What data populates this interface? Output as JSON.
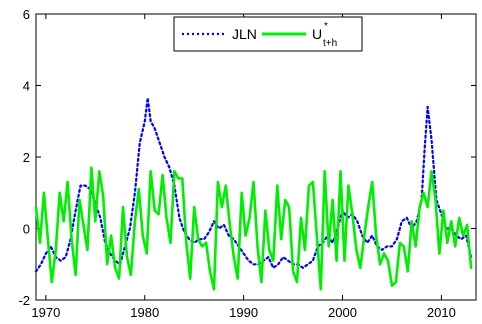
{
  "chart_data": {
    "type": "line",
    "title": "",
    "xlabel": "",
    "ylabel": "",
    "xlim": [
      1969,
      2013.5
    ],
    "ylim": [
      -2,
      6
    ],
    "x_ticks": [
      1970,
      1980,
      1990,
      2000,
      2010
    ],
    "y_ticks": [
      -2,
      0,
      2,
      4,
      6
    ],
    "grid": false,
    "legend": {
      "placement": "top-center",
      "entries": [
        {
          "label": "JLN",
          "series": 0
        },
        {
          "label_main": "U",
          "label_sup": "*",
          "label_sub": "t+h",
          "series": 1
        }
      ]
    },
    "series": [
      {
        "name": "JLN",
        "color": "#0000ff",
        "style": "dotted",
        "x": [
          1969.0,
          1969.5,
          1970.0,
          1970.5,
          1971.0,
          1971.5,
          1972.0,
          1972.5,
          1973.0,
          1973.5,
          1974.0,
          1974.5,
          1975.0,
          1975.5,
          1976.0,
          1976.5,
          1977.0,
          1977.5,
          1978.0,
          1978.5,
          1979.0,
          1979.5,
          1980.0,
          1980.3,
          1980.6,
          1981.0,
          1981.5,
          1982.0,
          1982.5,
          1983.0,
          1983.5,
          1984.0,
          1984.5,
          1985.0,
          1985.5,
          1986.0,
          1986.5,
          1987.0,
          1987.5,
          1988.0,
          1988.5,
          1989.0,
          1989.5,
          1990.0,
          1990.5,
          1991.0,
          1991.5,
          1992.0,
          1992.5,
          1993.0,
          1993.5,
          1994.0,
          1994.5,
          1995.0,
          1995.5,
          1996.0,
          1996.5,
          1997.0,
          1997.5,
          1998.0,
          1998.5,
          1999.0,
          1999.5,
          2000.0,
          2000.5,
          2001.0,
          2001.5,
          2002.0,
          2002.5,
          2003.0,
          2003.5,
          2004.0,
          2004.5,
          2005.0,
          2005.5,
          2006.0,
          2006.5,
          2007.0,
          2007.5,
          2008.0,
          2008.3,
          2008.6,
          2009.0,
          2009.5,
          2010.0,
          2010.5,
          2011.0,
          2011.5,
          2012.0,
          2012.5,
          2013.0
        ],
        "y": [
          -1.2,
          -1.0,
          -0.7,
          -0.5,
          -0.8,
          -0.9,
          -0.8,
          -0.3,
          0.5,
          1.2,
          1.2,
          1.1,
          0.7,
          0.3,
          -0.4,
          -0.7,
          -0.9,
          -1.0,
          -0.5,
          0.0,
          1.0,
          2.4,
          3.0,
          3.65,
          3.0,
          2.8,
          2.4,
          2.0,
          1.7,
          1.2,
          0.3,
          -0.1,
          -0.3,
          -0.4,
          -0.3,
          -0.3,
          -0.1,
          0.2,
          0.0,
          0.1,
          -0.2,
          -0.3,
          -0.5,
          -0.7,
          -0.9,
          -1.0,
          -1.0,
          -0.9,
          -0.8,
          -1.1,
          -1.0,
          -0.8,
          -0.9,
          -1.0,
          -1.0,
          -1.1,
          -1.0,
          -0.9,
          -0.5,
          -0.4,
          -0.2,
          -0.4,
          0.0,
          0.5,
          0.3,
          0.4,
          0.2,
          -0.2,
          -0.4,
          -0.2,
          -0.5,
          -0.6,
          -0.5,
          -0.5,
          -0.3,
          0.2,
          0.3,
          0.0,
          0.2,
          0.8,
          2.2,
          3.4,
          2.5,
          0.8,
          0.4,
          0.0,
          0.0,
          -0.2,
          -0.3,
          -0.2,
          -0.8
        ]
      },
      {
        "name": "U*t+h",
        "color": "#00ee00",
        "style": "solid",
        "x": [
          1969.0,
          1969.4,
          1969.8,
          1970.2,
          1970.6,
          1971.0,
          1971.4,
          1971.8,
          1972.2,
          1972.6,
          1973.0,
          1973.4,
          1973.8,
          1974.2,
          1974.6,
          1975.0,
          1975.4,
          1975.8,
          1976.2,
          1976.6,
          1977.0,
          1977.4,
          1977.8,
          1978.2,
          1978.6,
          1979.0,
          1979.4,
          1979.8,
          1980.2,
          1980.6,
          1981.0,
          1981.4,
          1981.8,
          1982.2,
          1982.6,
          1983.0,
          1983.4,
          1983.8,
          1984.2,
          1984.6,
          1985.0,
          1985.4,
          1985.8,
          1986.2,
          1986.6,
          1987.0,
          1987.4,
          1987.8,
          1988.2,
          1988.6,
          1989.0,
          1989.4,
          1989.8,
          1990.2,
          1990.6,
          1991.0,
          1991.4,
          1991.8,
          1992.2,
          1992.6,
          1993.0,
          1993.4,
          1993.8,
          1994.2,
          1994.6,
          1995.0,
          1995.4,
          1995.8,
          1996.2,
          1996.6,
          1997.0,
          1997.4,
          1997.8,
          1998.2,
          1998.6,
          1999.0,
          1999.4,
          1999.8,
          2000.2,
          2000.6,
          2001.0,
          2001.4,
          2001.8,
          2002.2,
          2002.6,
          2003.0,
          2003.4,
          2003.8,
          2004.2,
          2004.6,
          2005.0,
          2005.4,
          2005.8,
          2006.2,
          2006.6,
          2007.0,
          2007.4,
          2007.8,
          2008.2,
          2008.6,
          2009.0,
          2009.4,
          2009.8,
          2010.2,
          2010.6,
          2011.0,
          2011.4,
          2011.8,
          2012.2,
          2012.6,
          2013.0
        ],
        "y": [
          0.6,
          -0.4,
          1.0,
          -0.3,
          -1.5,
          -0.6,
          1.0,
          0.2,
          1.3,
          -0.3,
          -1.3,
          0.8,
          0.1,
          -0.6,
          1.7,
          0.2,
          1.6,
          0.9,
          -1.0,
          -0.2,
          -1.1,
          -1.4,
          0.6,
          -0.8,
          -1.3,
          0.2,
          1.1,
          -0.2,
          -0.7,
          1.6,
          0.5,
          0.4,
          1.5,
          0.3,
          -0.4,
          1.6,
          1.4,
          1.4,
          -0.4,
          -1.4,
          0.6,
          -0.3,
          -0.5,
          -0.4,
          -1.2,
          -1.7,
          1.3,
          0.6,
          1.2,
          0.1,
          -0.8,
          -1.4,
          1.0,
          -0.2,
          0.3,
          1.3,
          -0.5,
          -1.5,
          0.5,
          -0.6,
          -0.9,
          1.2,
          -0.3,
          0.8,
          0.6,
          -1.2,
          -1.5,
          0.3,
          -0.6,
          1.2,
          1.3,
          -0.2,
          -1.7,
          1.6,
          -0.5,
          0.8,
          -0.9,
          1.6,
          -0.9,
          1.2,
          0.4,
          -0.6,
          -1.1,
          -0.2,
          0.6,
          1.3,
          -0.2,
          -1.0,
          -0.7,
          -0.9,
          -1.6,
          -1.5,
          -0.4,
          -0.5,
          -1.2,
          0.2,
          -0.5,
          0.6,
          1.0,
          0.6,
          1.6,
          0.8,
          -0.7,
          0.5,
          -0.4,
          0.2,
          -0.5,
          0.3,
          -0.2,
          0.1,
          -1.1
        ]
      }
    ]
  }
}
